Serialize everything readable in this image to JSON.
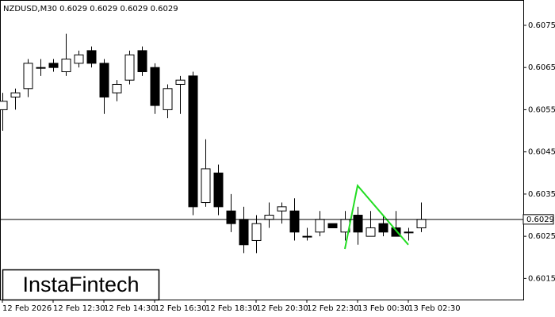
{
  "chart_data": {
    "type": "candlestick",
    "title": "NZDUSD,M30  0.6029 0.6029 0.6029 0.6029",
    "watermark": "InstaFintech",
    "categories": [
      "12 Feb 2026",
      null,
      null,
      null,
      "12 Feb 12:30",
      null,
      null,
      null,
      "12 Feb 14:30",
      null,
      null,
      null,
      "12 Feb 16:30",
      null,
      null,
      null,
      "12 Feb 18:30",
      null,
      null,
      null,
      "12 Feb 20:30",
      null,
      null,
      null,
      "12 Feb 22:30",
      null,
      null,
      null,
      "13 Feb 00:30",
      null,
      null,
      null,
      "13 Feb 02:30",
      null
    ],
    "open": [
      0.6055,
      0.6058,
      0.606,
      0.6065,
      0.6066,
      0.6064,
      0.6066,
      0.6069,
      0.6066,
      0.6059,
      0.6062,
      0.6069,
      0.6065,
      0.6055,
      0.6061,
      0.6063,
      0.6033,
      0.604,
      0.6031,
      0.6029,
      0.6024,
      0.6029,
      0.6031,
      0.6031,
      0.6025,
      0.6026,
      0.6028,
      0.6026,
      0.603,
      0.6025,
      0.6028,
      0.6027,
      0.6026,
      0.6027
    ],
    "high": [
      0.6059,
      0.606,
      0.6067,
      0.6067,
      0.6067,
      0.6073,
      0.6069,
      0.607,
      0.6067,
      0.6062,
      0.6069,
      0.607,
      0.6066,
      0.6061,
      0.6063,
      0.6064,
      0.6048,
      0.6042,
      0.6035,
      0.6032,
      0.603,
      0.6033,
      0.6033,
      0.6034,
      0.6027,
      0.6031,
      0.6028,
      0.6031,
      0.6032,
      0.6031,
      0.603,
      0.6031,
      0.6027,
      0.6033
    ],
    "low": [
      0.605,
      0.6055,
      0.6058,
      0.6063,
      0.6064,
      0.6063,
      0.6065,
      0.6065,
      0.6054,
      0.6057,
      0.6061,
      0.6063,
      0.6054,
      0.6053,
      0.6054,
      0.603,
      0.6032,
      0.603,
      0.6026,
      0.6021,
      0.6021,
      0.6027,
      0.6028,
      0.6024,
      0.6024,
      0.6025,
      0.6027,
      0.6024,
      0.6023,
      0.6025,
      0.6025,
      0.6025,
      0.6024,
      0.6026
    ],
    "close": [
      0.6057,
      0.6059,
      0.6066,
      0.6065,
      0.6065,
      0.6067,
      0.6068,
      0.6066,
      0.6058,
      0.6061,
      0.6068,
      0.6064,
      0.6056,
      0.606,
      0.6062,
      0.6032,
      0.6041,
      0.6032,
      0.6028,
      0.6023,
      0.6028,
      0.603,
      0.6032,
      0.6026,
      0.6025,
      0.6029,
      0.6027,
      0.6029,
      0.6026,
      0.6027,
      0.6026,
      0.6025,
      0.6026,
      0.6029
    ],
    "pattern": {
      "x": [
        27,
        28,
        32
      ],
      "values": [
        0.6022,
        0.6037,
        0.6023
      ],
      "color": "#22dd22"
    },
    "last_price": 0.6029,
    "ylim": [
      0.601,
      0.6081
    ],
    "yticks": [
      0.6015,
      0.6025,
      0.6035,
      0.6045,
      0.6055,
      0.6065,
      0.6075
    ]
  }
}
